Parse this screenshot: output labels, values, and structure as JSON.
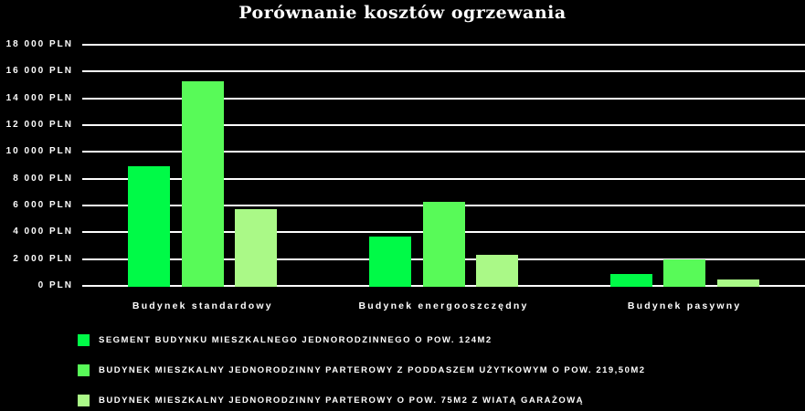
{
  "chart_data": {
    "type": "bar",
    "title": "Porównanie kosztów ogrzewania",
    "background_color": "#000000",
    "text_color": "#ffffff",
    "grid": true,
    "grid_color": "#ffffff",
    "legend_position": "bottom-left",
    "unit": "PLN",
    "ylim": [
      0,
      18000
    ],
    "ytick_step": 2000,
    "ytick_labels": [
      "0 PLN",
      "2 000 PLN",
      "4 000 PLN",
      "6 000 PLN",
      "8 000 PLN",
      "10 000 PLN",
      "12 000 PLN",
      "14 000 PLN",
      "16 000 PLN",
      "18 000 PLN"
    ],
    "categories": [
      "Budynek standardowy",
      "Budynek energooszczędny",
      "Budynek pasywny"
    ],
    "series": [
      {
        "name": "SEGMENT BUDYNKU MIESZKALNEGO JEDNORODZINNEGO O POW. 124M2",
        "color": "#00fa47",
        "values": [
          8900,
          3650,
          900
        ]
      },
      {
        "name": "BUDYNEK MIESZKALNY JEDNORODZINNY PARTEROWY Z PODDASZEM UŻYTKOWYM O POW. 219,50M2",
        "color": "#58fa58",
        "values": [
          15300,
          6300,
          1950
        ]
      },
      {
        "name": "BUDYNEK MIESZKALNY JEDNORODZINNY PARTEROWY O POW. 75M2 Z WIATĄ GARAŻOWĄ",
        "color": "#aaf987",
        "values": [
          5750,
          2350,
          500
        ]
      }
    ]
  }
}
